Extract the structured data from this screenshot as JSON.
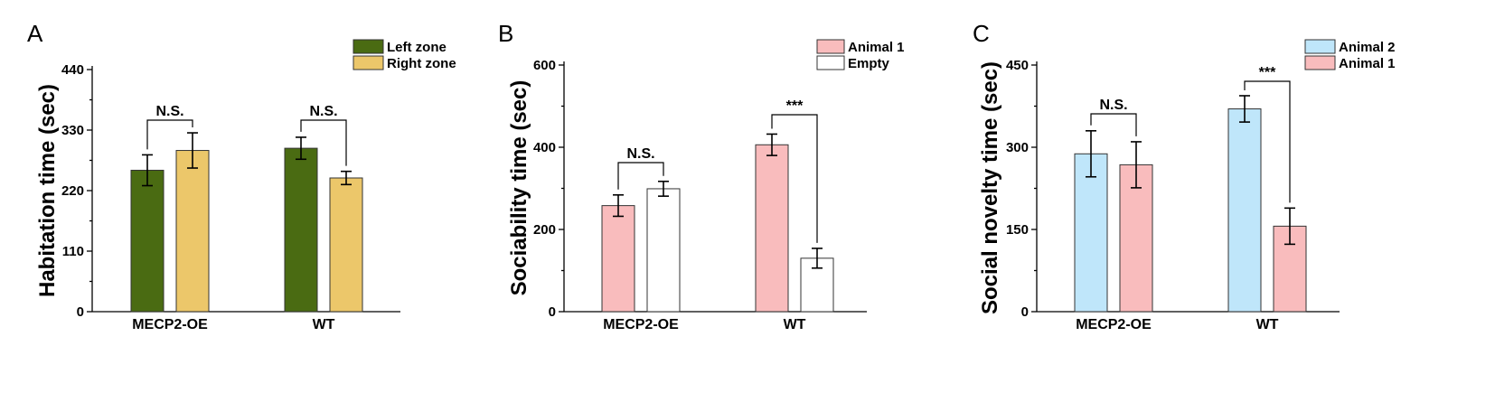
{
  "figure_colors": {
    "left_zone": "#4a6b12",
    "right_zone": "#ecc76a",
    "animal_1": "#f9bcbd",
    "empty": "#ffffff",
    "animal_2": "#bfe6fa"
  },
  "chart_data": [
    {
      "panel": "A",
      "type": "bar",
      "title": "",
      "xlabel": "",
      "ylabel": "Habitation time (sec)",
      "categories": [
        "MECP2-OE",
        "WT"
      ],
      "ylim": [
        0,
        440
      ],
      "yticks": [
        0,
        110,
        220,
        330,
        440
      ],
      "legend_position": "top-right",
      "series": [
        {
          "name": "Left zone",
          "color": "#4a6b12",
          "values": [
            257,
            297
          ],
          "errors": [
            28,
            20
          ]
        },
        {
          "name": "Right zone",
          "color": "#ecc76a",
          "values": [
            293,
            243
          ],
          "errors": [
            32,
            12
          ]
        }
      ],
      "significance": [
        {
          "label": "N.S.",
          "category_index": 0
        },
        {
          "label": "N.S.",
          "category_index": 1
        }
      ]
    },
    {
      "panel": "B",
      "type": "bar",
      "title": "",
      "xlabel": "",
      "ylabel": "Sociability time (sec)",
      "categories": [
        "MECP2-OE",
        "WT"
      ],
      "ylim": [
        0,
        600
      ],
      "yticks": [
        0,
        200,
        400,
        600
      ],
      "legend_position": "top-right",
      "series": [
        {
          "name": "Animal 1",
          "color": "#f9bcbd",
          "values": [
            258,
            406
          ],
          "errors": [
            26,
            26
          ]
        },
        {
          "name": "Empty",
          "color": "#ffffff",
          "values": [
            299,
            130
          ],
          "errors": [
            18,
            24
          ]
        }
      ],
      "significance": [
        {
          "label": "N.S.",
          "category_index": 0
        },
        {
          "label": "***",
          "category_index": 1
        }
      ]
    },
    {
      "panel": "C",
      "type": "bar",
      "title": "",
      "xlabel": "",
      "ylabel": "Social novelty time (sec)",
      "categories": [
        "MECP2-OE",
        "WT"
      ],
      "ylim": [
        0,
        450
      ],
      "yticks": [
        0,
        150,
        300,
        450
      ],
      "legend_position": "top-right",
      "series": [
        {
          "name": "Animal 2",
          "color": "#bfe6fa",
          "values": [
            288,
            370
          ],
          "errors": [
            42,
            24
          ]
        },
        {
          "name": "Animal 1",
          "color": "#f9bcbd",
          "values": [
            268,
            156
          ],
          "errors": [
            42,
            33
          ]
        }
      ],
      "significance": [
        {
          "label": "N.S.",
          "category_index": 0
        },
        {
          "label": "***",
          "category_index": 1
        }
      ]
    }
  ]
}
